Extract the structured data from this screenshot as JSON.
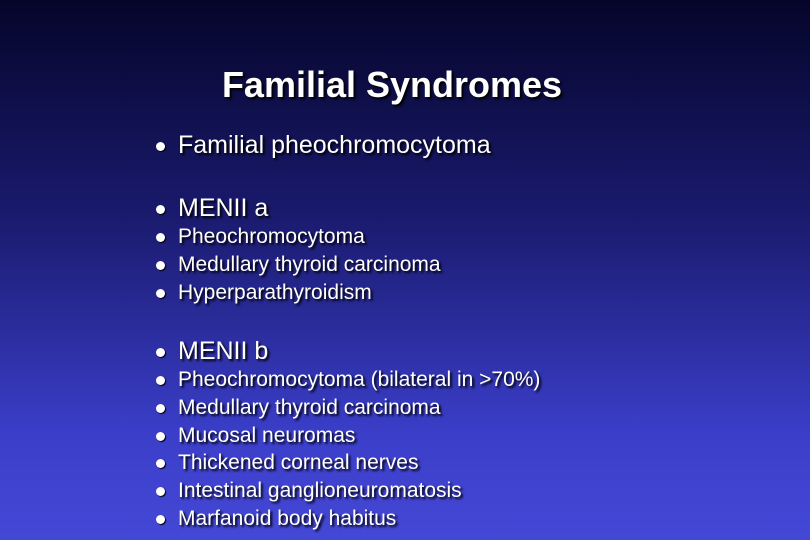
{
  "title": "Familial Syndromes",
  "sections": [
    {
      "heading": "Familial pheochromocytoma",
      "items": []
    },
    {
      "heading": "MENII a",
      "items": [
        "Pheochromocytoma",
        "Medullary thyroid carcinoma",
        "Hyperparathyroidism"
      ]
    },
    {
      "heading": "MENII b",
      "items": [
        "Pheochromocytoma (bilateral in >70%)",
        "Medullary thyroid carcinoma",
        "Mucosal neuromas",
        "Thickened corneal nerves",
        "Intestinal ganglioneuromatosis",
        "Marfanoid body habitus"
      ]
    }
  ]
}
